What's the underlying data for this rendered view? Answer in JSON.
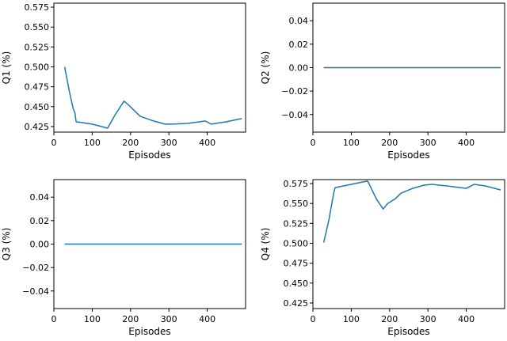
{
  "chart_data": [
    {
      "type": "line",
      "xlabel": "Episodes",
      "ylabel": "Q1 (%)",
      "xlim": [
        0,
        500
      ],
      "ylim": [
        0.418,
        0.58
      ],
      "xticks": [
        "0",
        "100",
        "200",
        "300",
        "400"
      ],
      "xtick_values": [
        0,
        100,
        200,
        300,
        400
      ],
      "yticks": [
        "0.425",
        "0.450",
        "0.475",
        "0.500",
        "0.525",
        "0.550",
        "0.575"
      ],
      "ytick_values": [
        0.425,
        0.45,
        0.475,
        0.5,
        0.525,
        0.55,
        0.575
      ],
      "grid": false,
      "series": [
        {
          "color": "#1f77b4",
          "x": [
            28,
            40,
            50,
            55,
            58,
            100,
            140,
            160,
            183,
            195,
            225,
            260,
            290,
            310,
            350,
            395,
            410,
            450,
            480,
            490
          ],
          "y": [
            0.5,
            0.47,
            0.448,
            0.442,
            0.431,
            0.428,
            0.423,
            0.44,
            0.457,
            0.452,
            0.438,
            0.432,
            0.428,
            0.428,
            0.429,
            0.432,
            0.428,
            0.431,
            0.434,
            0.435
          ]
        }
      ]
    },
    {
      "type": "line",
      "xlabel": "Episodes",
      "ylabel": "Q2 (%)",
      "xlim": [
        0,
        500
      ],
      "ylim": [
        -0.055,
        0.055
      ],
      "xticks": [
        "0",
        "100",
        "200",
        "300",
        "400"
      ],
      "xtick_values": [
        0,
        100,
        200,
        300,
        400
      ],
      "yticks": [
        "−0.04",
        "−0.02",
        "0.00",
        "0.02",
        "0.04"
      ],
      "ytick_values": [
        -0.04,
        -0.02,
        0.0,
        0.02,
        0.04
      ],
      "grid": false,
      "series": [
        {
          "color": "#1f77b4",
          "x": [
            28,
            490
          ],
          "y": [
            0.0,
            0.0
          ]
        }
      ]
    },
    {
      "type": "line",
      "xlabel": "Episodes",
      "ylabel": "Q3 (%)",
      "xlim": [
        0,
        500
      ],
      "ylim": [
        -0.055,
        0.055
      ],
      "xticks": [
        "0",
        "100",
        "200",
        "300",
        "400"
      ],
      "xtick_values": [
        0,
        100,
        200,
        300,
        400
      ],
      "yticks": [
        "−0.04",
        "−0.02",
        "0.00",
        "0.02",
        "0.04"
      ],
      "ytick_values": [
        -0.04,
        -0.02,
        0.0,
        0.02,
        0.04
      ],
      "grid": false,
      "series": [
        {
          "color": "#1f77b4",
          "x": [
            28,
            490
          ],
          "y": [
            0.0,
            0.0
          ]
        }
      ]
    },
    {
      "type": "line",
      "xlabel": "Episodes",
      "ylabel": "Q4 (%)",
      "xlim": [
        0,
        500
      ],
      "ylim": [
        0.418,
        0.58
      ],
      "xticks": [
        "0",
        "100",
        "200",
        "300",
        "400"
      ],
      "xtick_values": [
        0,
        100,
        200,
        300,
        400
      ],
      "yticks": [
        "0.425",
        "0.450",
        "0.475",
        "0.500",
        "0.525",
        "0.550",
        "0.575"
      ],
      "ytick_values": [
        0.425,
        0.45,
        0.475,
        0.5,
        0.525,
        0.55,
        0.575
      ],
      "grid": false,
      "series": [
        {
          "color": "#1f77b4",
          "x": [
            28,
            35,
            42,
            55,
            58,
            100,
            140,
            143,
            165,
            183,
            195,
            215,
            230,
            260,
            290,
            310,
            350,
            400,
            420,
            450,
            490
          ],
          "y": [
            0.501,
            0.515,
            0.53,
            0.565,
            0.57,
            0.574,
            0.578,
            0.578,
            0.556,
            0.543,
            0.55,
            0.556,
            0.563,
            0.569,
            0.573,
            0.574,
            0.572,
            0.569,
            0.574,
            0.572,
            0.567
          ]
        }
      ]
    }
  ]
}
